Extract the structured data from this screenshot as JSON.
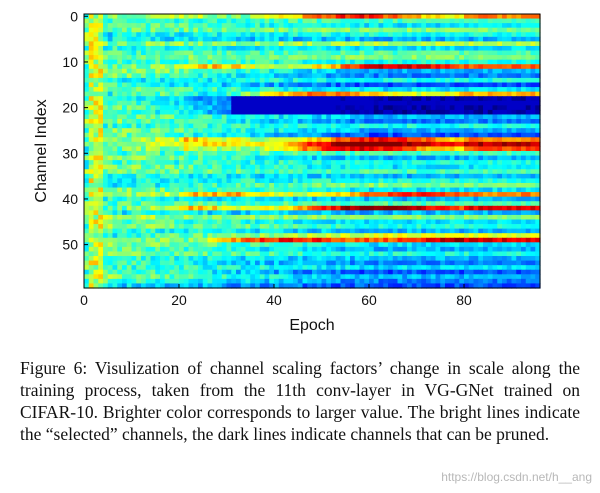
{
  "figure": {
    "caption": "Figure 6: Visulization of channel scaling factors’ change in scale along the training process, taken from the 11th conv-layer in VG-GNet trained on CIFAR-10. Brighter color corresponds to larger value. The bright lines indicate the “selected” channels, the dark lines indicate channels that can be pruned.",
    "watermark": "https://blog.csdn.net/h__ang"
  },
  "chart_data": {
    "type": "heatmap",
    "title": "",
    "xlabel": "Epoch",
    "ylabel": "Channel Index",
    "xlim": [
      0,
      96
    ],
    "ylim": [
      60,
      0
    ],
    "x_ticks": [
      "0",
      "20",
      "40",
      "60",
      "80"
    ],
    "y_ticks": [
      "0",
      "10",
      "20",
      "30",
      "40",
      "50"
    ],
    "n_channels": 60,
    "n_epochs": 96,
    "colormap": "jet",
    "grid": false,
    "colors": {
      "low": "#00008f",
      "mid": "#00ffff",
      "high": "#ff0000"
    },
    "channel_scaling_factors_final": [
      0.75,
      0.45,
      0.35,
      0.5,
      0.4,
      0.3,
      0.55,
      0.35,
      0.45,
      0.5,
      0.4,
      0.8,
      0.3,
      0.25,
      0.4,
      0.2,
      0.35,
      0.7,
      0.05,
      0.1,
      0.05,
      0.05,
      0.3,
      0.25,
      0.4,
      0.3,
      0.2,
      0.75,
      0.95,
      0.8,
      0.45,
      0.3,
      0.4,
      0.35,
      0.45,
      0.3,
      0.4,
      0.5,
      0.35,
      0.75,
      0.3,
      0.45,
      0.9,
      0.3,
      0.5,
      0.35,
      0.4,
      0.3,
      0.6,
      0.9,
      0.35,
      0.3,
      0.4,
      0.3,
      0.25,
      0.35,
      0.2,
      0.3,
      0.25,
      0.2
    ]
  }
}
